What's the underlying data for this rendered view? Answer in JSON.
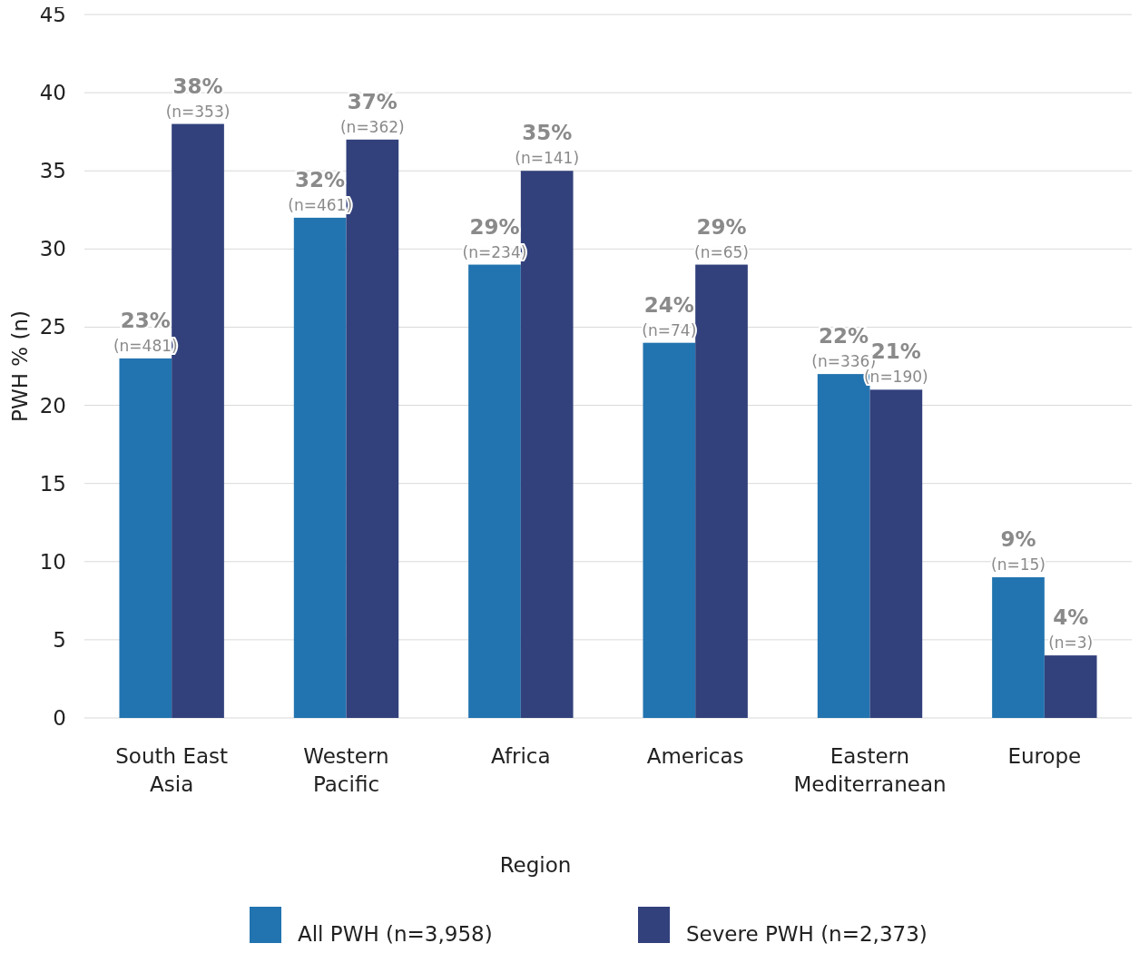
{
  "chart_data": {
    "type": "bar",
    "xlabel": "Region",
    "ylabel": "PWH % (n)",
    "categories": [
      "South East Asia",
      "Western Pacific",
      "Africa",
      "Americas",
      "Eastern Mediterranean",
      "Europe"
    ],
    "series": [
      {
        "name": "All PWH (n=3,958)",
        "color": "#2274b0",
        "values": [
          23,
          32,
          29,
          24,
          22,
          9
        ],
        "value_labels": [
          "23%\n(n=481)",
          "32%\n(n=461)",
          "29%\n(n=234)",
          "24%\n(n=74)",
          "22%\n(n=336)",
          "9%\n(n=15)"
        ]
      },
      {
        "name": "Severe PWH (n=2,373)",
        "color": "#32417c",
        "values": [
          38,
          37,
          35,
          29,
          21,
          4
        ],
        "value_labels": [
          "38%\n(n=353)",
          "37%\n(n=362)",
          "35%\n(n=141)",
          "29%\n(n=65)",
          "21%\n(n=190)",
          "4%\n(n=3)"
        ]
      }
    ],
    "ylim": [
      0,
      45
    ],
    "yticks": [
      0,
      5,
      10,
      15,
      20,
      25,
      30,
      35,
      40,
      45
    ],
    "grid": "y",
    "legend": "bottom"
  }
}
